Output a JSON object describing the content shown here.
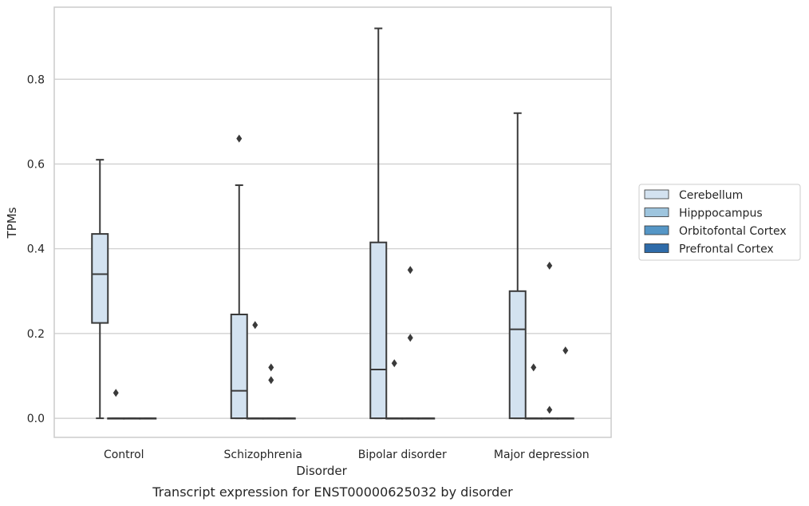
{
  "chart_data": {
    "type": "box",
    "title": "Transcript expression for ENST00000625032 by disorder",
    "xlabel": "Disorder",
    "ylabel": "TPMs",
    "categories": [
      "Control",
      "Schizophrenia",
      "Bipolar disorder",
      "Major depression"
    ],
    "y_ticks": [
      "0.0",
      "0.2",
      "0.4",
      "0.6",
      "0.8"
    ],
    "ylim": [
      -0.045,
      0.97
    ],
    "grid": "horizontal",
    "legend_position": "right",
    "colors": {
      "Cerebellum": "#d3e2f0",
      "Hipppocampus": "#9ec5de",
      "Orbitofontal Cortex": "#5596c6",
      "Prefrontal Cortex": "#2e6ba9",
      "line": "#3a3a3a",
      "grid": "#cccccc"
    },
    "series": [
      {
        "name": "Cerebellum",
        "boxes": [
          {
            "q1": 0.225,
            "median": 0.34,
            "q3": 0.435,
            "whisker_low": 0.0,
            "whisker_high": 0.61,
            "outliers": []
          },
          {
            "q1": 0.0,
            "median": 0.065,
            "q3": 0.245,
            "whisker_low": 0.0,
            "whisker_high": 0.55,
            "outliers": [
              0.66
            ]
          },
          {
            "q1": 0.0,
            "median": 0.115,
            "q3": 0.415,
            "whisker_low": 0.0,
            "whisker_high": 0.92,
            "outliers": []
          },
          {
            "q1": 0.0,
            "median": 0.21,
            "q3": 0.3,
            "whisker_low": 0.0,
            "whisker_high": 0.72,
            "outliers": []
          }
        ]
      },
      {
        "name": "Hipppocampus",
        "boxes": [
          {
            "q1": 0.0,
            "median": 0.0,
            "q3": 0.0,
            "whisker_low": 0.0,
            "whisker_high": 0.0,
            "outliers": [
              0.06
            ]
          },
          {
            "q1": 0.0,
            "median": 0.0,
            "q3": 0.0,
            "whisker_low": 0.0,
            "whisker_high": 0.0,
            "outliers": [
              0.22
            ]
          },
          {
            "q1": 0.0,
            "median": 0.0,
            "q3": 0.0,
            "whisker_low": 0.0,
            "whisker_high": 0.0,
            "outliers": [
              0.13
            ]
          },
          {
            "q1": 0.0,
            "median": 0.0,
            "q3": 0.0,
            "whisker_low": 0.0,
            "whisker_high": 0.0,
            "outliers": [
              0.12
            ]
          }
        ]
      },
      {
        "name": "Orbitofontal Cortex",
        "boxes": [
          {
            "q1": 0.0,
            "median": 0.0,
            "q3": 0.0,
            "whisker_low": 0.0,
            "whisker_high": 0.0,
            "outliers": []
          },
          {
            "q1": 0.0,
            "median": 0.0,
            "q3": 0.0,
            "whisker_low": 0.0,
            "whisker_high": 0.0,
            "outliers": [
              0.12,
              0.09
            ]
          },
          {
            "q1": 0.0,
            "median": 0.0,
            "q3": 0.0,
            "whisker_low": 0.0,
            "whisker_high": 0.0,
            "outliers": [
              0.35,
              0.19
            ]
          },
          {
            "q1": 0.0,
            "median": 0.0,
            "q3": 0.0,
            "whisker_low": 0.0,
            "whisker_high": 0.0,
            "outliers": [
              0.36,
              0.02
            ]
          }
        ]
      },
      {
        "name": "Prefrontal Cortex",
        "boxes": [
          {
            "q1": 0.0,
            "median": 0.0,
            "q3": 0.0,
            "whisker_low": 0.0,
            "whisker_high": 0.0,
            "outliers": []
          },
          {
            "q1": 0.0,
            "median": 0.0,
            "q3": 0.0,
            "whisker_low": 0.0,
            "whisker_high": 0.0,
            "outliers": []
          },
          {
            "q1": 0.0,
            "median": 0.0,
            "q3": 0.0,
            "whisker_low": 0.0,
            "whisker_high": 0.0,
            "outliers": []
          },
          {
            "q1": 0.0,
            "median": 0.0,
            "q3": 0.0,
            "whisker_low": 0.0,
            "whisker_high": 0.0,
            "outliers": [
              0.16
            ]
          }
        ]
      }
    ]
  }
}
